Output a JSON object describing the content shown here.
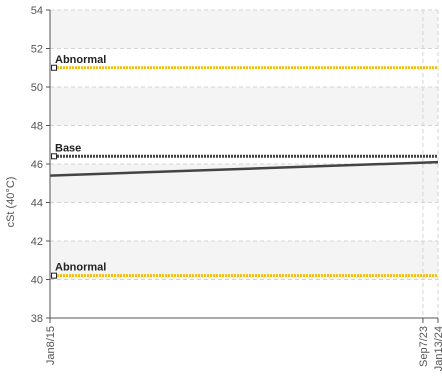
{
  "chart_data": {
    "type": "line",
    "title": "",
    "xlabel": "",
    "ylabel": "cSt (40°C)",
    "ylim": [
      38,
      54
    ],
    "yticks": [
      38,
      40,
      42,
      44,
      46,
      48,
      50,
      52,
      54
    ],
    "xlim": [
      "2015-01-08",
      "2024-01-13"
    ],
    "xticks": [
      {
        "date": "2015-01-08",
        "label": "Jan8/15"
      },
      {
        "date": "2023-09-07",
        "label": "Sep7/23"
      },
      {
        "date": "2024-01-13",
        "label": "Jan13/24"
      }
    ],
    "grid": true,
    "reference_lines": [
      {
        "label": "Abnormal",
        "value": 51.0,
        "color": "#f2c200",
        "style": "dotted"
      },
      {
        "label": "Base",
        "value": 46.4,
        "color": "#444444",
        "style": "dotted"
      },
      {
        "label": "Abnormal",
        "value": 40.2,
        "color": "#f2c200",
        "style": "dotted"
      }
    ],
    "series": [
      {
        "color": "#444444",
        "points": [
          {
            "x": "2015-01-08",
            "y": 45.4
          },
          {
            "x": "2024-01-13",
            "y": 46.1
          }
        ]
      }
    ],
    "band_colors": [
      "#f4f4f4",
      "#ffffff"
    ]
  }
}
